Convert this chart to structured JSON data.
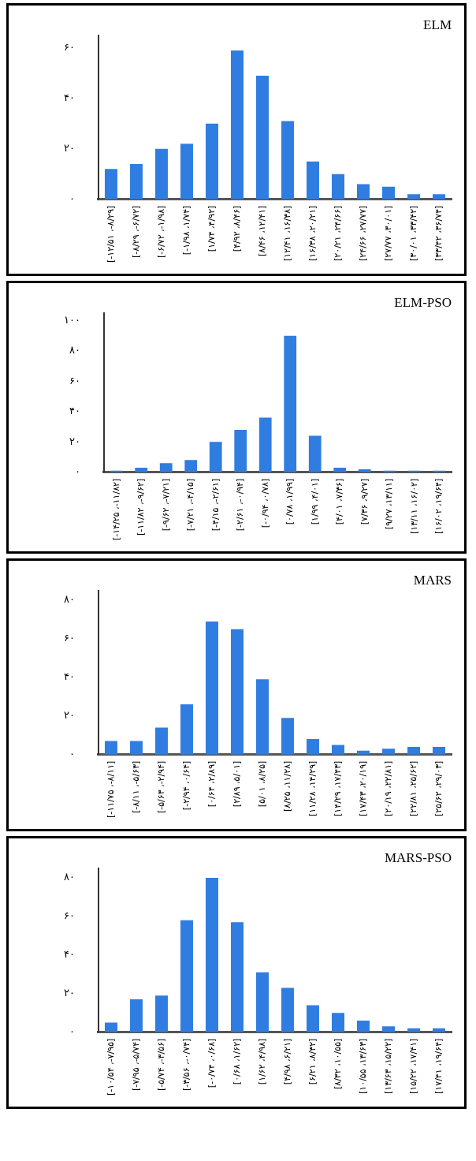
{
  "chart_data": [
    {
      "type": "bar",
      "title": "ELM",
      "categories": [
        "[-۱۲/۵۱ ،-۸/۲۹]",
        "[-۸/۲۹ ،-۶/۷۲]",
        "[-۶/۷۲ ،-۱/۹۸]",
        "[-۱/۹۸ ،۱/۷۴]",
        "[۱/۷۴ ،۴/۹۲]",
        "[۴/۹۲ ،۸/۴۶]",
        "[۸/۴۶ ،۱۲/۴۱]",
        "[۱۲/۴۱ ،۱۶/۳۸]",
        "[۱۶/۳۸ ،۲۰/۲۱]",
        "[۲۰/۲۱ ،۲۴/۶۶]",
        "[۲۴/۶۶ ،۲۷/۷۷]",
        "[۲۷/۷۷ ،۳۰/۰۱]",
        "[۳۰/۰۱ ،۳۳/۴۲]",
        "[۳۳/۴۲ ،۳۶/۷۴]"
      ],
      "values": [
        12,
        14,
        20,
        22,
        30,
        59,
        49,
        31,
        15,
        10,
        6,
        5,
        2,
        2
      ],
      "color": "#2f7de1",
      "ylim": [
        0,
        65
      ],
      "yticks": [
        {
          "value": 0,
          "label": "۰"
        },
        {
          "value": 20,
          "label": "۲۰"
        },
        {
          "value": 40,
          "label": "۴۰"
        },
        {
          "value": 60,
          "label": "۶۰"
        }
      ],
      "grid": false,
      "legend": false
    },
    {
      "type": "bar",
      "title": "ELM-PSO",
      "categories": [
        "[-۱۴/۲۵ ،-۱۱/۸۲]",
        "[-۱۱/۸۲ ،-۹/۶۲]",
        "[-۹/۶۲ ،-۷/۲۱]",
        "[-۷/۲۱ ،-۴/۱۵]",
        "[-۴/۱۵ ،-۲/۶۱]",
        "[-۲/۶۱ ،-۰/۹۴]",
        "[-۰/۹۴ ،۰/۷۸]",
        "[۰/۷۸ ،۱/۹۹]",
        "[۱/۹۹ ،۴/۰۱]",
        "[۴/۰۱ ،۷/۳۶]",
        "[۷/۳۶ ،۹/۲۷]",
        "[۹/۲۷ ،۱۳/۱۱]",
        "[۱۳/۱۱ ،۱۶/۰۲]",
        "[۱۶/۰۲ ،۱۹/۶۴]"
      ],
      "values": [
        1,
        3,
        6,
        8,
        20,
        28,
        36,
        90,
        24,
        3,
        2,
        1,
        1,
        1
      ],
      "color": "#2f7de1",
      "ylim": [
        0,
        105
      ],
      "yticks": [
        {
          "value": 0,
          "label": "۰"
        },
        {
          "value": 20,
          "label": "۲۰"
        },
        {
          "value": 40,
          "label": "۴۰"
        },
        {
          "value": 60,
          "label": "۶۰"
        },
        {
          "value": 80,
          "label": "۸۰"
        },
        {
          "value": 100,
          "label": "۱۰۰"
        }
      ],
      "grid": false,
      "legend": false
    },
    {
      "type": "bar",
      "title": "MARS",
      "categories": [
        "[-۱۱/۷۵ ،-۸/۱۱]",
        "[-۸/۱۱ ،-۵/۶۳]",
        "[-۵/۶۳ ،-۲/۹۴]",
        "[-۲/۹۴ ،۰/۶۴]",
        "[۰/۶۴ ،۲/۸۹]",
        "[۲/۸۹ ،۵/۰۱]",
        "[۵/۰۱ ،۸/۲۵]",
        "[۸/۲۵ ،۱۱/۲۸]",
        "[۱۱/۲۸ ،۱۴/۲۹]",
        "[۱۴/۲۹ ،۱۷/۴۳]",
        "[۱۷/۴۳ ،۲۰/۱۹]",
        "[۲۰/۱۹ ،۲۲/۸۱]",
        "[۲۲/۸۱ ،۲۵/۶۲]",
        "[۲۵/۶۲ ،۲۹/۰۳]"
      ],
      "values": [
        7,
        7,
        14,
        26,
        69,
        65,
        39,
        19,
        8,
        5,
        2,
        3,
        4,
        4
      ],
      "color": "#2f7de1",
      "ylim": [
        0,
        85
      ],
      "yticks": [
        {
          "value": 0,
          "label": "۰"
        },
        {
          "value": 20,
          "label": "۲۰"
        },
        {
          "value": 40,
          "label": "۴۰"
        },
        {
          "value": 60,
          "label": "۶۰"
        },
        {
          "value": 80,
          "label": "۸۰"
        }
      ],
      "grid": false,
      "legend": false
    },
    {
      "type": "bar",
      "title": "MARS-PSO",
      "categories": [
        "[-۱۰/۵۴ ،-۷/۹۵]",
        "[-۷/۹۵ ،-۵/۷۴]",
        "[-۵/۷۴ ،-۳/۵۶]",
        "[-۳/۵۶ ،-۰/۷۴]",
        "[-۰/۷۴ ،۰/۶۸]",
        "[۰/۶۸ ،۱/۶۲]",
        "[۱/۶۲ ،۴/۹۸]",
        "[۴/۹۸ ،۶/۲۱]",
        "[۶/۲۱ ،۸/۳۲]",
        "[۸/۳۲ ،۱۰/۵۵]",
        "[۱۰/۵۵ ،۱۳/۶۳]",
        "[۱۳/۶۳ ،۱۵/۲۲]",
        "[۱۵/۲۲ ،۱۷/۴۱]",
        "[۱۷/۴۱ ،۱۹/۶۴]"
      ],
      "values": [
        5,
        17,
        19,
        58,
        80,
        57,
        31,
        23,
        14,
        10,
        6,
        3,
        2,
        2
      ],
      "color": "#2f7de1",
      "ylim": [
        0,
        85
      ],
      "yticks": [
        {
          "value": 0,
          "label": "۰"
        },
        {
          "value": 20,
          "label": "۲۰"
        },
        {
          "value": 40,
          "label": "۴۰"
        },
        {
          "value": 60,
          "label": "۶۰"
        },
        {
          "value": 80,
          "label": "۸۰"
        }
      ],
      "grid": false,
      "legend": false
    }
  ]
}
